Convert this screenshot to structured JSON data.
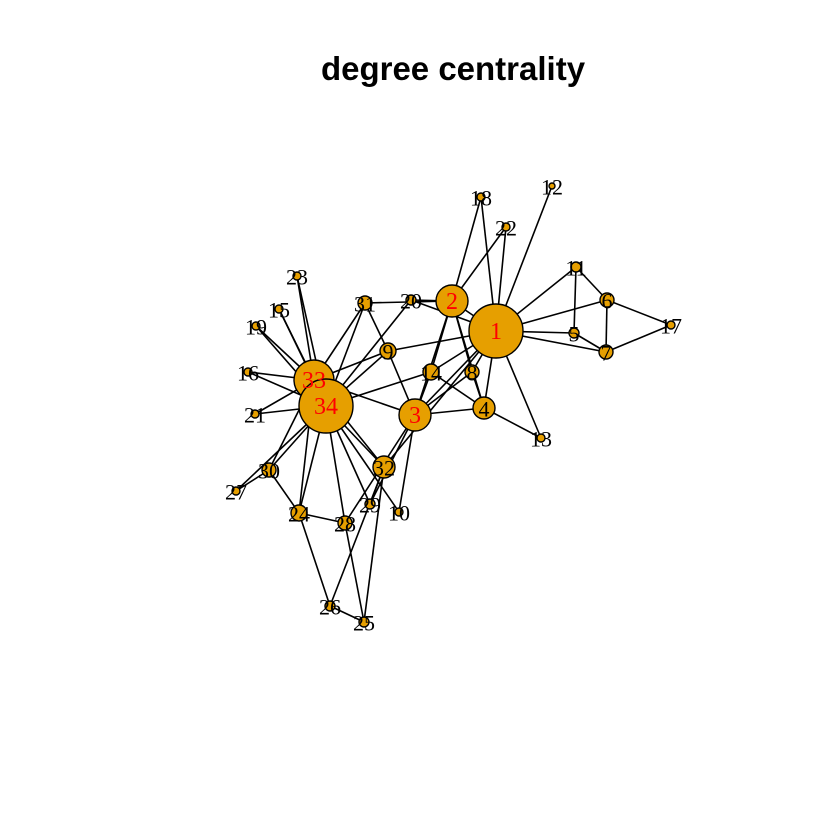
{
  "title": "degree centrality",
  "colors": {
    "node_fill": "#E69F00",
    "node_border": "#000000",
    "edge": "#000000",
    "label_large": "#FF0000",
    "label_small": "#000000"
  },
  "graph": {
    "nodes": [
      {
        "id": "1",
        "degree": 16
      },
      {
        "id": "2",
        "degree": 9
      },
      {
        "id": "3",
        "degree": 10
      },
      {
        "id": "4",
        "degree": 6
      },
      {
        "id": "5",
        "degree": 3
      },
      {
        "id": "6",
        "degree": 4
      },
      {
        "id": "7",
        "degree": 4
      },
      {
        "id": "8",
        "degree": 4
      },
      {
        "id": "9",
        "degree": 5
      },
      {
        "id": "10",
        "degree": 2
      },
      {
        "id": "11",
        "degree": 3
      },
      {
        "id": "12",
        "degree": 1
      },
      {
        "id": "13",
        "degree": 2
      },
      {
        "id": "14",
        "degree": 5
      },
      {
        "id": "15",
        "degree": 2
      },
      {
        "id": "16",
        "degree": 2
      },
      {
        "id": "17",
        "degree": 2
      },
      {
        "id": "18",
        "degree": 2
      },
      {
        "id": "19",
        "degree": 2
      },
      {
        "id": "20",
        "degree": 3
      },
      {
        "id": "21",
        "degree": 2
      },
      {
        "id": "22",
        "degree": 2
      },
      {
        "id": "23",
        "degree": 2
      },
      {
        "id": "24",
        "degree": 5
      },
      {
        "id": "25",
        "degree": 3
      },
      {
        "id": "26",
        "degree": 3
      },
      {
        "id": "27",
        "degree": 2
      },
      {
        "id": "28",
        "degree": 4
      },
      {
        "id": "29",
        "degree": 3
      },
      {
        "id": "30",
        "degree": 4
      },
      {
        "id": "31",
        "degree": 4
      },
      {
        "id": "32",
        "degree": 6
      },
      {
        "id": "33",
        "degree": 12
      },
      {
        "id": "34",
        "degree": 17
      }
    ],
    "edges": [
      [
        "1",
        "2"
      ],
      [
        "1",
        "3"
      ],
      [
        "1",
        "4"
      ],
      [
        "1",
        "5"
      ],
      [
        "1",
        "6"
      ],
      [
        "1",
        "7"
      ],
      [
        "1",
        "8"
      ],
      [
        "1",
        "9"
      ],
      [
        "1",
        "11"
      ],
      [
        "1",
        "12"
      ],
      [
        "1",
        "13"
      ],
      [
        "1",
        "14"
      ],
      [
        "1",
        "18"
      ],
      [
        "1",
        "20"
      ],
      [
        "1",
        "22"
      ],
      [
        "1",
        "32"
      ],
      [
        "2",
        "3"
      ],
      [
        "2",
        "4"
      ],
      [
        "2",
        "8"
      ],
      [
        "2",
        "14"
      ],
      [
        "2",
        "18"
      ],
      [
        "2",
        "20"
      ],
      [
        "2",
        "22"
      ],
      [
        "2",
        "31"
      ],
      [
        "3",
        "4"
      ],
      [
        "3",
        "8"
      ],
      [
        "3",
        "9"
      ],
      [
        "3",
        "10"
      ],
      [
        "3",
        "14"
      ],
      [
        "3",
        "28"
      ],
      [
        "3",
        "29"
      ],
      [
        "3",
        "33"
      ],
      [
        "4",
        "8"
      ],
      [
        "4",
        "13"
      ],
      [
        "4",
        "14"
      ],
      [
        "5",
        "7"
      ],
      [
        "5",
        "11"
      ],
      [
        "6",
        "7"
      ],
      [
        "6",
        "11"
      ],
      [
        "6",
        "17"
      ],
      [
        "7",
        "17"
      ],
      [
        "9",
        "31"
      ],
      [
        "9",
        "33"
      ],
      [
        "9",
        "34"
      ],
      [
        "10",
        "34"
      ],
      [
        "14",
        "34"
      ],
      [
        "15",
        "33"
      ],
      [
        "15",
        "34"
      ],
      [
        "16",
        "33"
      ],
      [
        "16",
        "34"
      ],
      [
        "19",
        "33"
      ],
      [
        "19",
        "34"
      ],
      [
        "20",
        "34"
      ],
      [
        "21",
        "33"
      ],
      [
        "21",
        "34"
      ],
      [
        "23",
        "33"
      ],
      [
        "23",
        "34"
      ],
      [
        "24",
        "26"
      ],
      [
        "24",
        "28"
      ],
      [
        "24",
        "30"
      ],
      [
        "24",
        "33"
      ],
      [
        "24",
        "34"
      ],
      [
        "25",
        "26"
      ],
      [
        "25",
        "28"
      ],
      [
        "25",
        "32"
      ],
      [
        "26",
        "32"
      ],
      [
        "27",
        "30"
      ],
      [
        "27",
        "34"
      ],
      [
        "28",
        "34"
      ],
      [
        "29",
        "32"
      ],
      [
        "29",
        "34"
      ],
      [
        "30",
        "33"
      ],
      [
        "30",
        "34"
      ],
      [
        "31",
        "33"
      ],
      [
        "31",
        "34"
      ],
      [
        "32",
        "33"
      ],
      [
        "32",
        "34"
      ],
      [
        "33",
        "34"
      ]
    ]
  }
}
